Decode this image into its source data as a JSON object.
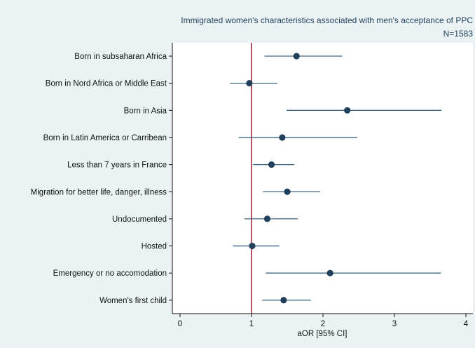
{
  "chart_data": {
    "type": "scatter",
    "style": "forest-plot",
    "title": "Immigrated women's characteristics associated with men's acceptance of PPC",
    "subtitle": "N=1583",
    "xlabel": "aOR [95% CI]",
    "ylabel": "",
    "xlim": [
      0,
      4
    ],
    "xticks": [
      0,
      1,
      2,
      3,
      4
    ],
    "reference_line": 1,
    "grid": false,
    "colors": {
      "background": "#eaf2f3",
      "plot_area": "#ffffff",
      "point": "#1f3f5a",
      "ci_line": "#3d6480",
      "reference_line": "#a01a35",
      "axis": "#111111"
    },
    "rows": [
      {
        "label": "Born in subsaharan Africa",
        "estimate": 1.63,
        "ci_low": 1.18,
        "ci_high": 2.27
      },
      {
        "label": "Born in Nord Africa or Middle East",
        "estimate": 0.97,
        "ci_low": 0.7,
        "ci_high": 1.36
      },
      {
        "label": "Born in Asia",
        "estimate": 2.34,
        "ci_low": 1.49,
        "ci_high": 3.66
      },
      {
        "label": "Born in Latin America or Carribean",
        "estimate": 1.43,
        "ci_low": 0.82,
        "ci_high": 2.48
      },
      {
        "label": "Less than 7 years in France",
        "estimate": 1.28,
        "ci_low": 1.02,
        "ci_high": 1.6
      },
      {
        "label": "Migration for better life, danger, illness",
        "estimate": 1.5,
        "ci_low": 1.16,
        "ci_high": 1.96
      },
      {
        "label": "Undocumented",
        "estimate": 1.22,
        "ci_low": 0.9,
        "ci_high": 1.65
      },
      {
        "label": "Hosted",
        "estimate": 1.01,
        "ci_low": 0.74,
        "ci_high": 1.39
      },
      {
        "label": "Emergency or no accomodation",
        "estimate": 2.1,
        "ci_low": 1.2,
        "ci_high": 3.65
      },
      {
        "label": "Women's first child",
        "estimate": 1.45,
        "ci_low": 1.15,
        "ci_high": 1.83
      }
    ]
  }
}
